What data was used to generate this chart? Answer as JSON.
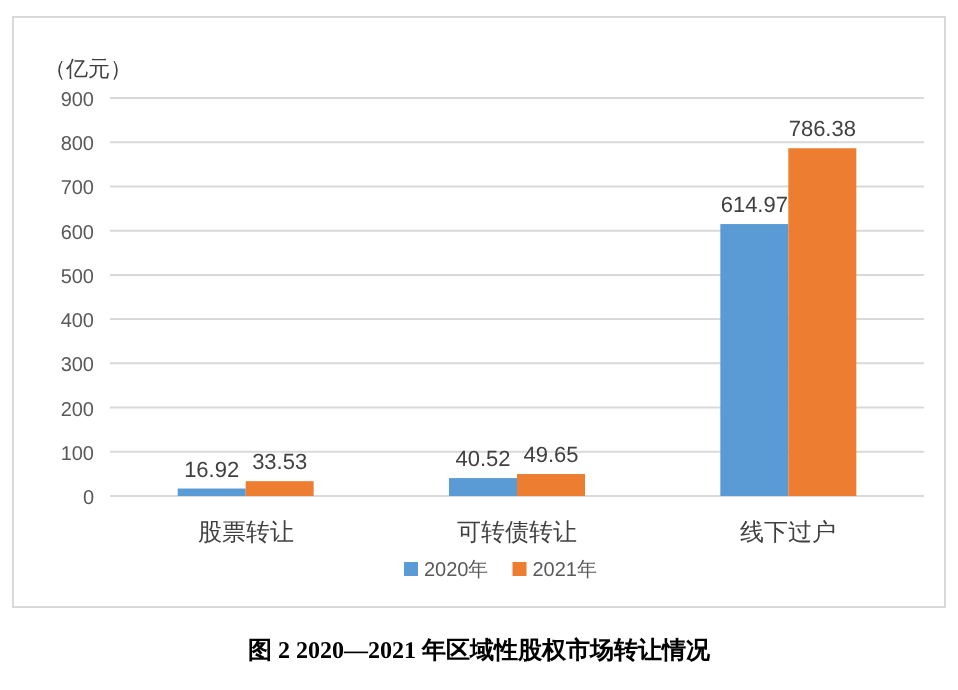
{
  "chart_data": {
    "type": "bar",
    "title": "图 2 2020—2021 年区域性股权市场转让情况",
    "ylabel": "（亿元）",
    "categories": [
      "股票转让",
      "可转债转让",
      "线下过户"
    ],
    "series": [
      {
        "name": "2020年",
        "color": "#5b9bd5",
        "values": [
          16.92,
          40.52,
          614.97
        ]
      },
      {
        "name": "2021年",
        "color": "#ed7d31",
        "values": [
          33.53,
          49.65,
          786.38
        ]
      }
    ],
    "ylim": [
      0,
      900
    ],
    "yticks": [
      0,
      100,
      200,
      300,
      400,
      500,
      600,
      700,
      800,
      900
    ],
    "grid": "y",
    "legend": "bottom",
    "data_labels": true
  }
}
